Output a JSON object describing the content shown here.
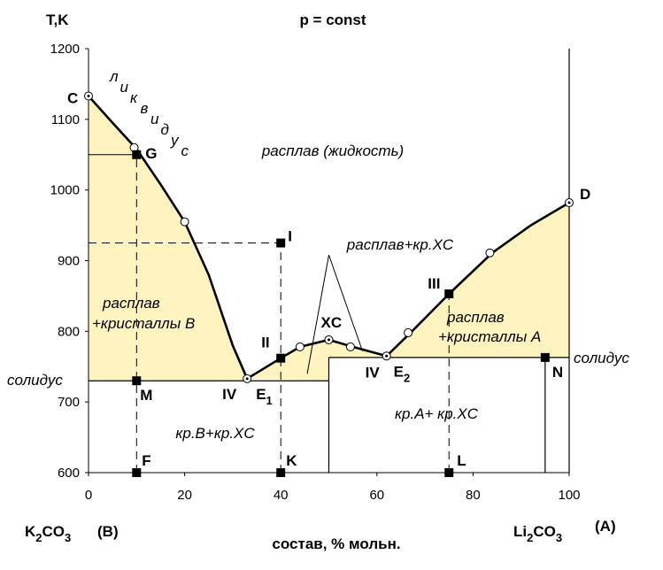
{
  "chart_data": {
    "type": "line",
    "title": "p = const",
    "ylabel": "T,K",
    "xlabel": "состав, % мольн.",
    "xlim": [
      0,
      100
    ],
    "ylim": [
      600,
      1200
    ],
    "xticks": [
      0,
      20,
      40,
      60,
      80,
      100
    ],
    "yticks": [
      600,
      700,
      800,
      900,
      1000,
      1100,
      1200
    ],
    "grid": false,
    "left_component": {
      "formula": [
        "K",
        "2",
        "CO",
        "3"
      ],
      "tag": "(B)"
    },
    "right_component": {
      "formula": [
        "Li",
        "2",
        "CO",
        "3"
      ],
      "tag": "(A)"
    },
    "liquidus": {
      "label": [
        "л",
        "и",
        "к",
        "в",
        "и",
        "д",
        "у",
        "с"
      ],
      "left_branch": [
        [
          0,
          1133
        ],
        [
          5,
          1095
        ],
        [
          10,
          1058
        ],
        [
          15,
          1008
        ],
        [
          20,
          955
        ],
        [
          25,
          880
        ],
        [
          30,
          780
        ],
        [
          33,
          733
        ]
      ],
      "compound_branch": [
        [
          33,
          733
        ],
        [
          40,
          762
        ],
        [
          44,
          778
        ],
        [
          50,
          788
        ],
        [
          55,
          778
        ],
        [
          62,
          765
        ]
      ],
      "right_branch": [
        [
          62,
          765
        ],
        [
          67,
          798
        ],
        [
          75,
          853
        ],
        [
          84,
          911
        ],
        [
          92,
          950
        ],
        [
          100,
          982
        ]
      ],
      "open_points": [
        [
          9.5,
          1060
        ],
        [
          20,
          955
        ],
        [
          44,
          778
        ],
        [
          54.5,
          778
        ],
        [
          66.5,
          798
        ],
        [
          83.5,
          911
        ]
      ]
    },
    "solidus": {
      "label": "солидус",
      "left_T": 730,
      "left_x_end": 50,
      "right_T": 763,
      "right_x_start": 50,
      "right_x_end": 100
    },
    "vertical_lines": [
      {
        "x": 50,
        "from": 600,
        "to": 763,
        "style": "solid"
      },
      {
        "x": 95,
        "from": 600,
        "to": 763,
        "style": "solid"
      },
      {
        "x": 100,
        "from": 600,
        "to": 1200,
        "style": "solid"
      },
      {
        "x": 10,
        "from": 600,
        "to": 1050,
        "style": "dashed"
      },
      {
        "x": 40,
        "from": 600,
        "to": 925,
        "style": "dashed"
      },
      {
        "x": 75,
        "from": 600,
        "to": 853,
        "style": "dashed"
      }
    ],
    "horizontal_lines": [
      {
        "y": 1050,
        "from": 0,
        "to": 10,
        "style": "solid"
      },
      {
        "y": 925,
        "from": 0,
        "to": 40,
        "style": "dashed"
      }
    ],
    "points": [
      {
        "label": "C",
        "x": 0,
        "y": 1133,
        "marker": "open"
      },
      {
        "label": "G",
        "x": 10,
        "y": 1050,
        "marker": "filled"
      },
      {
        "label": "D",
        "x": 100,
        "y": 982,
        "marker": "open"
      },
      {
        "label": "I",
        "x": 40,
        "y": 925,
        "marker": "filled"
      },
      {
        "label": "III",
        "x": 75,
        "y": 853,
        "marker": "filled"
      },
      {
        "label": "XC",
        "x": 50,
        "y": 788,
        "marker": "open"
      },
      {
        "label": "II",
        "x": 40,
        "y": 762,
        "marker": "filled"
      },
      {
        "label": "E",
        "sub": "1",
        "x": 33,
        "y": 733,
        "marker": "open"
      },
      {
        "label": "E",
        "sub": "2",
        "x": 62,
        "y": 765,
        "marker": "open"
      },
      {
        "label": "M",
        "x": 10,
        "y": 730,
        "marker": "filled"
      },
      {
        "label": "N",
        "x": 95,
        "y": 763,
        "marker": "filled"
      },
      {
        "label": "F",
        "x": 10,
        "y": 600,
        "marker": "filled"
      },
      {
        "label": "K",
        "x": 40,
        "y": 600,
        "marker": "filled"
      },
      {
        "label": "L",
        "x": 75,
        "y": 600,
        "marker": "filled"
      }
    ],
    "text_labels": {
      "melt": "расплав (жидкость)",
      "melt_compound": "расплав+кр.XC",
      "melt_crystals_b_1": "расплав",
      "melt_crystals_b_2": "+кристаллы B",
      "melt_crystals_a_1": "расплав",
      "melt_crystals_a_2": "+кристаллы A",
      "solid_b": "кр.B+кр.XC",
      "solid_a": "кр.A+ кр.XC",
      "iv_left": "IV",
      "iv_right": "IV"
    },
    "fill_color": "#FFF3BF"
  }
}
